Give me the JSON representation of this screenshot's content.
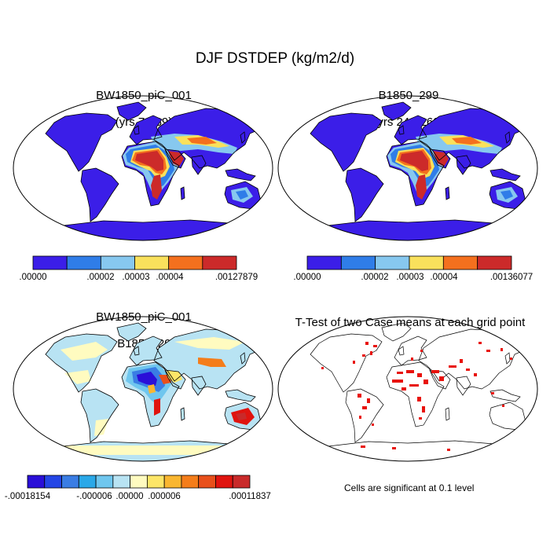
{
  "title": "DJF DSTDEP (kg/m2/d)",
  "panels": [
    {
      "id": "case1",
      "title_line1": "BW1850_piC_001",
      "title_line2": "(yrs 70-89)",
      "colorbar": {
        "colors": [
          "#3b1ee8",
          "#2f7de8",
          "#87c8ef",
          "#f9e15c",
          "#f4701e",
          "#cc2a2a"
        ],
        "labels": [
          ".00000",
          ".00002",
          ".00003",
          ".00004",
          ".00127879"
        ]
      }
    },
    {
      "id": "case2",
      "title_line1": "B1850_299",
      "title_line2": "(yrs 243-262)",
      "colorbar": {
        "colors": [
          "#3b1ee8",
          "#2f7de8",
          "#87c8ef",
          "#f9e15c",
          "#f4701e",
          "#cc2a2a"
        ],
        "labels": [
          ".00000",
          ".00002",
          ".00003",
          ".00004",
          ".00136077"
        ]
      }
    },
    {
      "id": "diff",
      "title_line1": "BW1850_piC_001",
      "title_line2": "- B1850_299",
      "colorbar": {
        "colors": [
          "#2a0fd8",
          "#2446e6",
          "#3a7de4",
          "#2aa8e8",
          "#6fc6ee",
          "#b8e3f3",
          "#fffbc0",
          "#fde668",
          "#f9b630",
          "#f47d1a",
          "#e8501b",
          "#e0140f",
          "#c92a2a"
        ],
        "labels": [
          "-.00018154",
          "-.000006",
          ".00000",
          ".000006",
          ".00011837"
        ]
      }
    },
    {
      "id": "ttest",
      "title_line1": "T-Test of two Case means at each grid point",
      "note": "Cells are significant at 0.1 level",
      "sig_color": "#e8120c"
    }
  ]
}
